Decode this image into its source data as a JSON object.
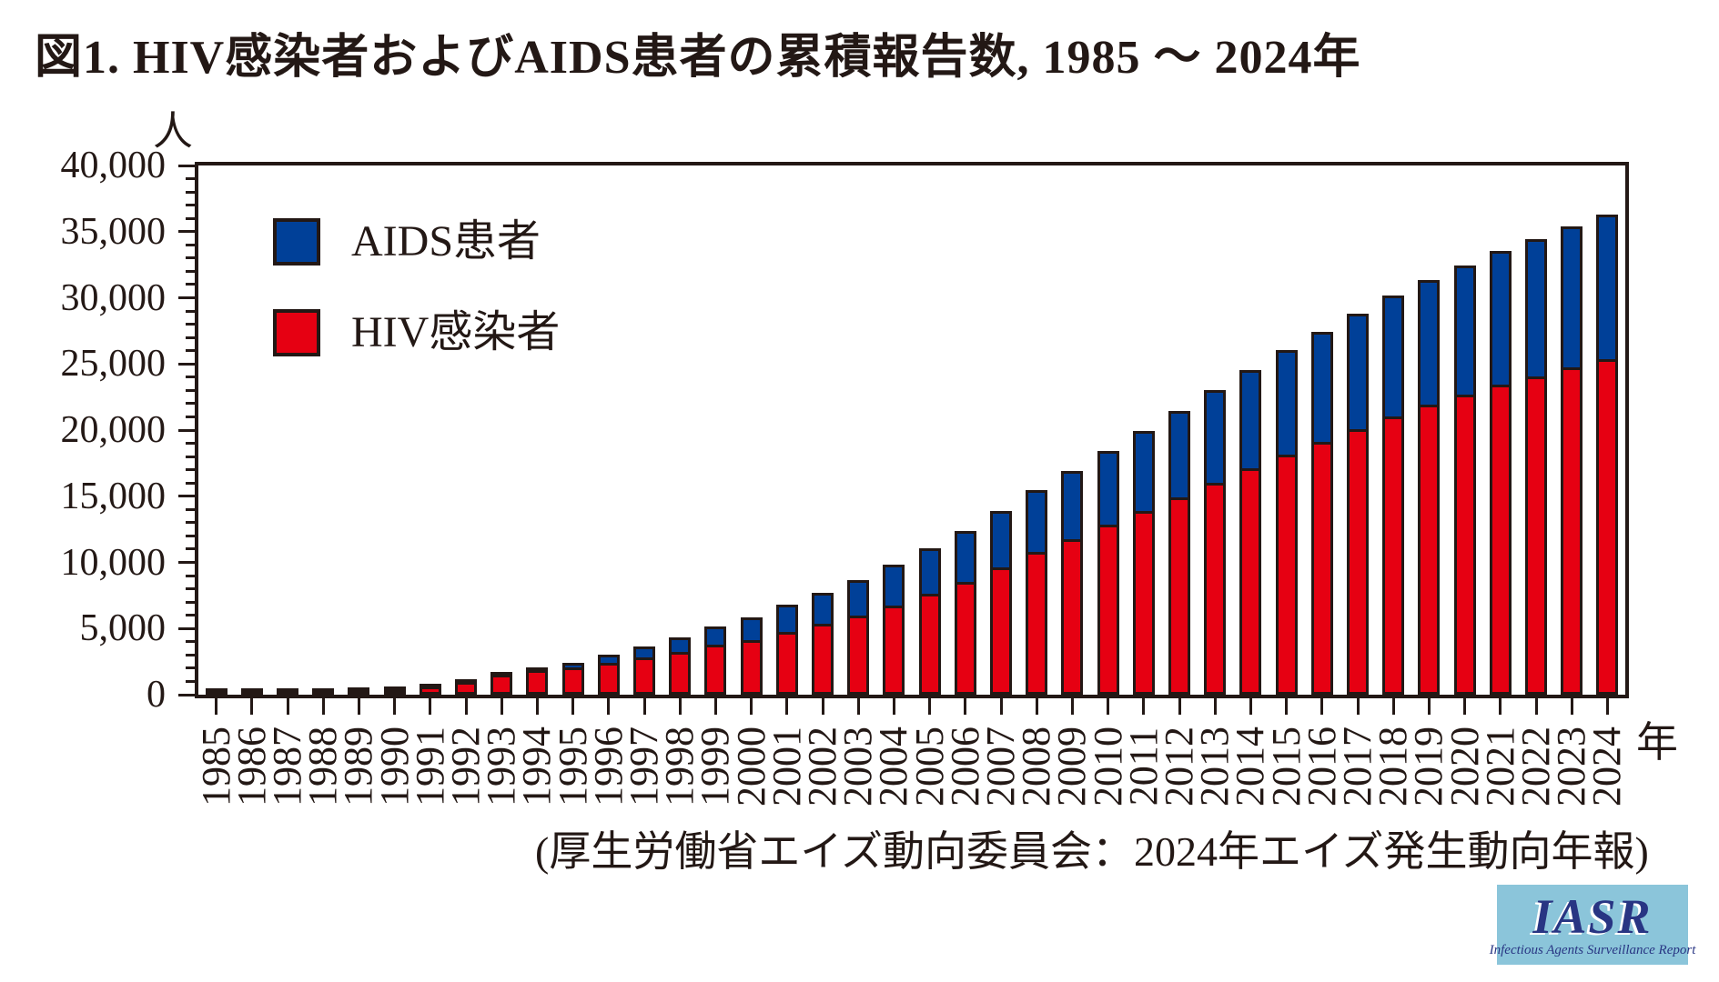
{
  "title": "図1. HIV感染者およびAIDS患者の累積報告数, 1985 ～ 2024年",
  "caption": "(厚生労働省エイズ動向委員会：2024年エイズ発生動向年報)",
  "y_axis": {
    "unit_label": "人",
    "max": 40000,
    "major_step": 5000,
    "minor_step": 1000,
    "tick_labels": [
      "40,000",
      "35,000",
      "30,000",
      "25,000",
      "20,000",
      "15,000",
      "10,000",
      "5,000",
      "0"
    ]
  },
  "x_axis": {
    "unit_label": "年"
  },
  "legend": {
    "aids_label": "AIDS患者",
    "hiv_label": "HIV感染者"
  },
  "colors": {
    "hiv_red": "#e60012",
    "aids_blue": "#004098",
    "outline_black": "#231815",
    "logo_bg": "#8bc5da",
    "logo_navy": "#283583"
  },
  "logo": {
    "text": "IASR",
    "subtitle": "Infectious Agents Surveillance Report"
  },
  "chart_data": {
    "type": "bar",
    "stacked": true,
    "title": "図1. HIV感染者およびAIDS患者の累積報告数, 1985 ～ 2024年",
    "xlabel": "年",
    "ylabel": "人",
    "ylim": [
      0,
      40000
    ],
    "grid": false,
    "legend_position": "upper-left-inside",
    "categories": [
      "1985",
      "1986",
      "1987",
      "1988",
      "1989",
      "1990",
      "1991",
      "1992",
      "1993",
      "1994",
      "1995",
      "1996",
      "1997",
      "1998",
      "1999",
      "2000",
      "2001",
      "2002",
      "2003",
      "2004",
      "2005",
      "2006",
      "2007",
      "2008",
      "2009",
      "2010",
      "2011",
      "2012",
      "2013",
      "2014",
      "2015",
      "2016",
      "2017",
      "2018",
      "2019",
      "2020",
      "2021",
      "2022",
      "2023",
      "2024"
    ],
    "series": [
      {
        "name": "HIV感染者",
        "color": "#e60012",
        "values": [
          10,
          25,
          60,
          100,
          160,
          230,
          400,
          790,
          1300,
          1650,
          1850,
          2200,
          2600,
          3000,
          3550,
          3905,
          4526,
          5140,
          5780,
          6560,
          7392,
          8344,
          9426,
          10552,
          11573,
          12648,
          13704,
          14706,
          15812,
          16903,
          17909,
          18920,
          19896,
          20836,
          21739,
          22489,
          23231,
          23863,
          24530,
          25160
        ]
      },
      {
        "name": "AIDS患者",
        "color": "#004098",
        "values": [
          10,
          25,
          55,
          85,
          115,
          145,
          190,
          260,
          300,
          350,
          550,
          800,
          1050,
          1300,
          1550,
          1916,
          2248,
          2556,
          2892,
          3277,
          3644,
          4050,
          4468,
          4899,
          5330,
          5799,
          6272,
          6719,
          7203,
          7658,
          8086,
          8523,
          8936,
          9313,
          9646,
          9991,
          10306,
          10558,
          10850,
          11140
        ]
      }
    ]
  }
}
